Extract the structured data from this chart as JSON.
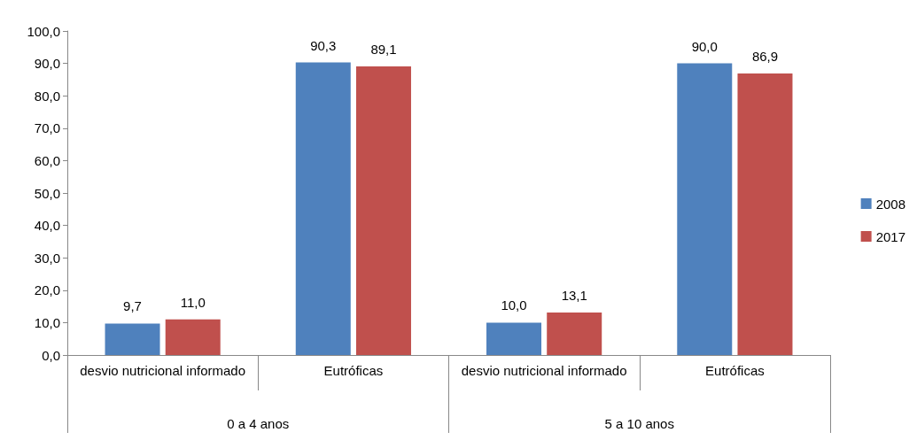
{
  "chart_data": {
    "type": "bar",
    "categories": [
      "desvio nutricional informado",
      "Eutróficas",
      "desvio nutricional informado",
      "Eutróficas"
    ],
    "annotations": [
      "0 a 4 anos",
      "5 a 10 anos"
    ],
    "series": [
      {
        "name": "2008",
        "color": "#4f81bd",
        "values": [
          9.7,
          90.3,
          10.0,
          90.0
        ],
        "value_labels": [
          "9,7",
          "90,3",
          "10,0",
          "90,0"
        ]
      },
      {
        "name": "2017",
        "color": "#c0504d",
        "values": [
          11.0,
          89.1,
          13.1,
          86.9
        ],
        "value_labels": [
          "11,0",
          "89,1",
          "13,1",
          "86,9"
        ]
      }
    ],
    "ylim": [
      0,
      100
    ],
    "yticks": [
      {
        "value": 0,
        "label": "0,0"
      },
      {
        "value": 10,
        "label": "10,0"
      },
      {
        "value": 20,
        "label": "20,0"
      },
      {
        "value": 30,
        "label": "30,0"
      },
      {
        "value": 40,
        "label": "40,0"
      },
      {
        "value": 50,
        "label": "50,0"
      },
      {
        "value": 60,
        "label": "60,0"
      },
      {
        "value": 70,
        "label": "70,0"
      },
      {
        "value": 80,
        "label": "80,0"
      },
      {
        "value": 90,
        "label": "90,0"
      },
      {
        "value": 100,
        "label": "100,0"
      }
    ],
    "grid": false,
    "legend": "right"
  }
}
